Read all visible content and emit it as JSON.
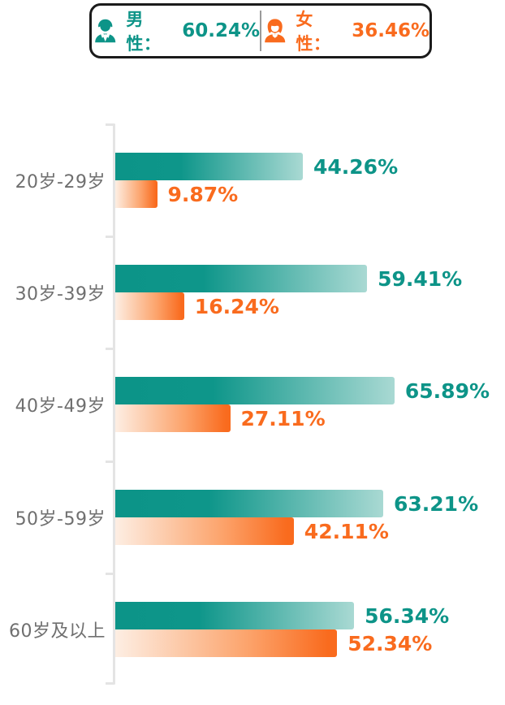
{
  "legend": {
    "male": {
      "label": "男性：",
      "value": "60.24%"
    },
    "female": {
      "label": "女性：",
      "value": "36.46%"
    }
  },
  "chart_data": {
    "type": "bar",
    "orientation": "horizontal",
    "title": "",
    "categories": [
      "20岁-29岁",
      "30岁-39岁",
      "40岁-49岁",
      "50岁-59岁",
      "60岁及以上"
    ],
    "series": [
      {
        "name": "男性",
        "color": "#0d9488",
        "values": [
          44.26,
          59.41,
          65.89,
          63.21,
          56.34
        ],
        "labels": [
          "44.26%",
          "59.41%",
          "65.89%",
          "63.21%",
          "56.34%"
        ]
      },
      {
        "name": "女性",
        "color": "#f96b1e",
        "values": [
          9.87,
          16.24,
          27.11,
          42.11,
          52.34
        ],
        "labels": [
          "9.87%",
          "16.24%",
          "27.11%",
          "42.11%",
          "52.34%"
        ]
      }
    ],
    "xlim": [
      0,
      70
    ],
    "grid": false,
    "legend_position": "top",
    "colors": {
      "male_bar_start": "#0c9488",
      "male_bar_end": "#a9d9d3",
      "female_bar_start": "#fdeee3",
      "female_bar_end": "#f96b1e",
      "category_label": "#6f6f6f",
      "axis": "#e4e4e4",
      "legend_border": "#1b1b1b"
    }
  }
}
